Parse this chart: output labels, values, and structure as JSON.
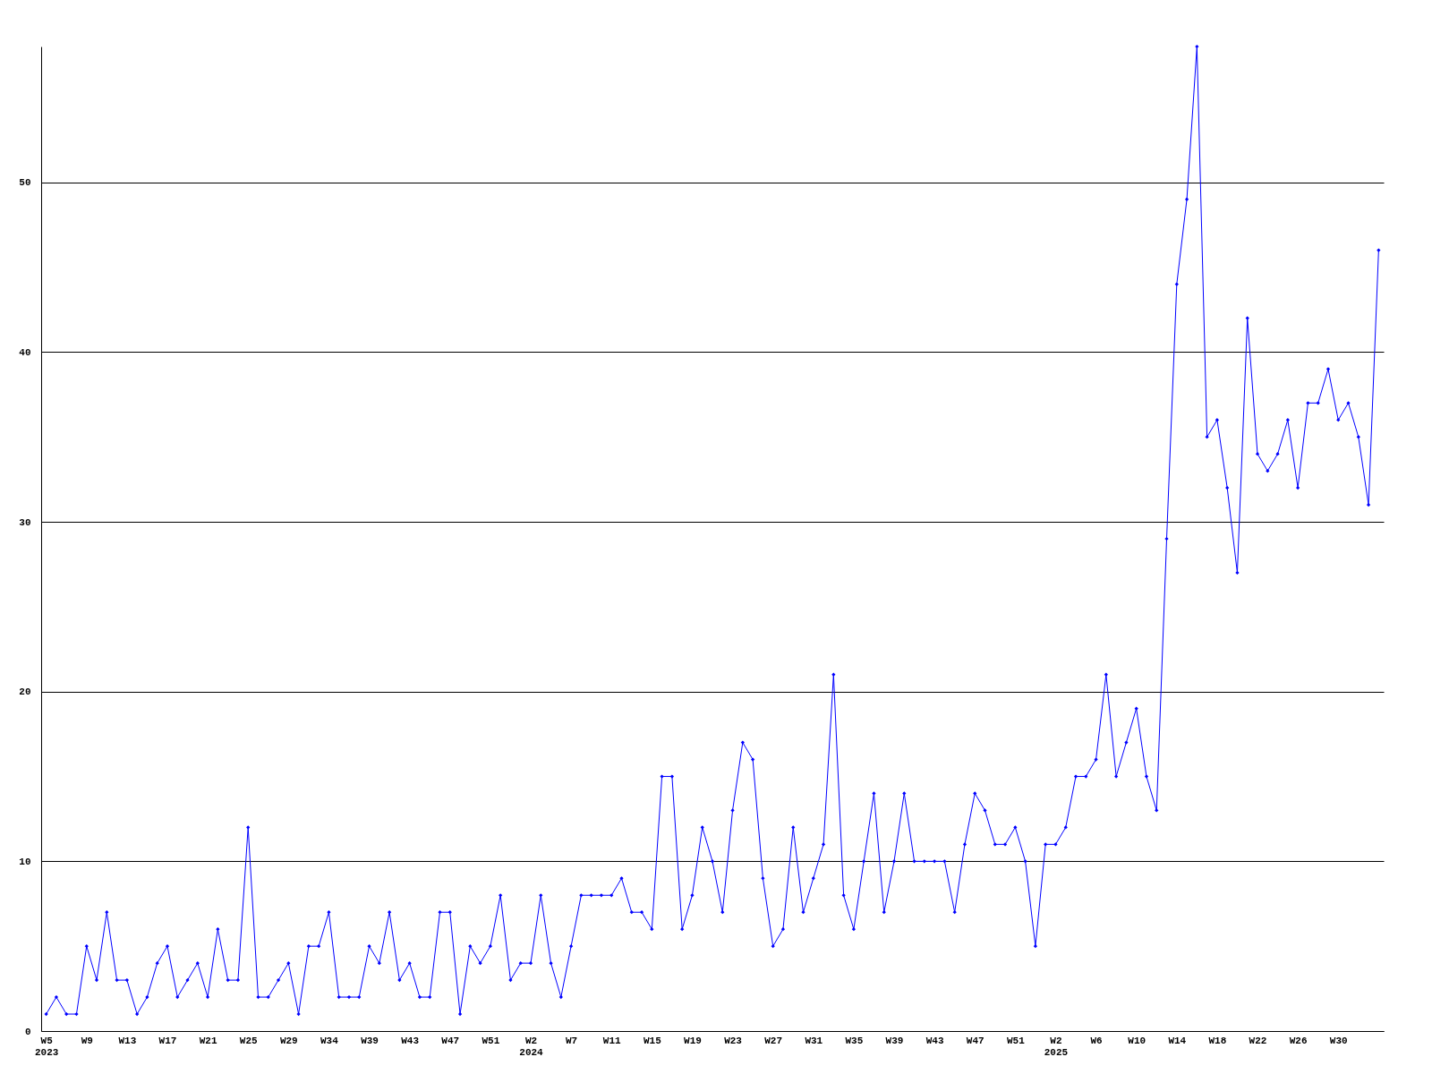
{
  "chart_data": {
    "type": "line",
    "categories": [
      "W5\n2023",
      null,
      null,
      null,
      "W9",
      null,
      null,
      null,
      "W13",
      null,
      null,
      null,
      "W17",
      null,
      null,
      null,
      "W21",
      null,
      null,
      null,
      "W25",
      null,
      null,
      null,
      "W29",
      null,
      null,
      null,
      "W34",
      null,
      null,
      null,
      "W39",
      null,
      null,
      null,
      "W43",
      null,
      null,
      null,
      "W47",
      null,
      null,
      null,
      "W51",
      null,
      null,
      null,
      "W2\n2024",
      null,
      null,
      null,
      "W7",
      null,
      null,
      null,
      "W11",
      null,
      null,
      null,
      "W15",
      null,
      null,
      null,
      "W19",
      null,
      null,
      null,
      "W23",
      null,
      null,
      null,
      "W27",
      null,
      null,
      null,
      "W31",
      null,
      null,
      null,
      "W35",
      null,
      null,
      null,
      "W39",
      null,
      null,
      null,
      "W43",
      null,
      null,
      null,
      "W47",
      null,
      null,
      null,
      "W51",
      null,
      null,
      null,
      "W2\n2025",
      null,
      null,
      null,
      "W6",
      null,
      null,
      null,
      "W10",
      null,
      null,
      null,
      "W14",
      null,
      null,
      null,
      "W18",
      null,
      null,
      null,
      "W22",
      null,
      null,
      null,
      "W26",
      null,
      null,
      null,
      "W30",
      null,
      null,
      null,
      null
    ],
    "series": [
      {
        "color": "#0000ff",
        "values": [
          1,
          2,
          1,
          1,
          5,
          3,
          7,
          3,
          3,
          1,
          2,
          4,
          5,
          2,
          3,
          4,
          2,
          6,
          3,
          3,
          12,
          2,
          2,
          3,
          4,
          1,
          5,
          5,
          7,
          2,
          2,
          2,
          5,
          4,
          7,
          3,
          4,
          2,
          2,
          7,
          7,
          1,
          5,
          4,
          5,
          8,
          3,
          4,
          4,
          8,
          4,
          2,
          5,
          8,
          8,
          8,
          8,
          9,
          7,
          7,
          6,
          15,
          15,
          6,
          8,
          12,
          10,
          7,
          13,
          17,
          16,
          9,
          5,
          6,
          12,
          7,
          9,
          11,
          21,
          8,
          6,
          10,
          14,
          7,
          10,
          14,
          10,
          10,
          10,
          10,
          7,
          11,
          14,
          13,
          11,
          11,
          12,
          10,
          5,
          11,
          11,
          12,
          15,
          15,
          16,
          21,
          15,
          17,
          19,
          15,
          13,
          29,
          44,
          49,
          58,
          35,
          36,
          32,
          27,
          42,
          34,
          33,
          34,
          36,
          32,
          37,
          37,
          39,
          36,
          37,
          35,
          31,
          46
        ]
      }
    ],
    "ylim": [
      0,
      58
    ],
    "yticks": [
      0,
      10,
      20,
      30,
      40,
      50
    ],
    "grid": "y",
    "legend": false,
    "marker": "diamond",
    "line_style": "solid"
  }
}
